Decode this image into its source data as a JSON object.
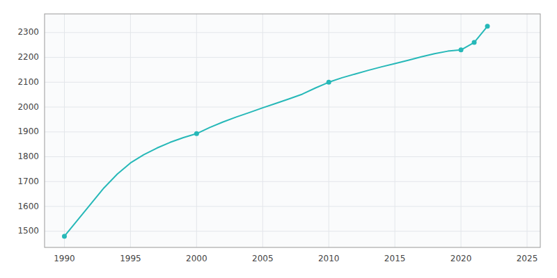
{
  "chart_data": {
    "type": "line",
    "series": [
      {
        "type": "line",
        "color": "#26b8b8",
        "x": [
          1990,
          1991,
          1992,
          1993,
          1994,
          1995,
          1996,
          1997,
          1998,
          1999,
          2000,
          2001,
          2002,
          2003,
          2004,
          2005,
          2006,
          2007,
          2008,
          2009,
          2010,
          2011,
          2012,
          2013,
          2014,
          2015,
          2016,
          2017,
          2018,
          2019,
          2020,
          2021,
          2022
        ],
        "values": [
          1480,
          1545,
          1610,
          1675,
          1730,
          1775,
          1808,
          1835,
          1858,
          1877,
          1893,
          1918,
          1940,
          1960,
          1978,
          1997,
          2015,
          2033,
          2052,
          2077,
          2100,
          2118,
          2133,
          2148,
          2162,
          2175,
          2188,
          2202,
          2215,
          2225,
          2230,
          2260,
          2325
        ]
      },
      {
        "type": "scatter",
        "color": "#26b8b8",
        "x": [
          1990,
          2000,
          2010,
          2020,
          2021,
          2022
        ],
        "values": [
          1480,
          1893,
          2100,
          2230,
          2260,
          2325
        ]
      }
    ],
    "xlim": [
      1988.5,
      2026
    ],
    "ylim": [
      1435,
      2375
    ],
    "xticks": [
      1990,
      1995,
      2000,
      2005,
      2010,
      2015,
      2020,
      2025
    ],
    "yticks": [
      1500,
      1600,
      1700,
      1800,
      1900,
      2000,
      2100,
      2200,
      2300
    ],
    "grid": true
  }
}
